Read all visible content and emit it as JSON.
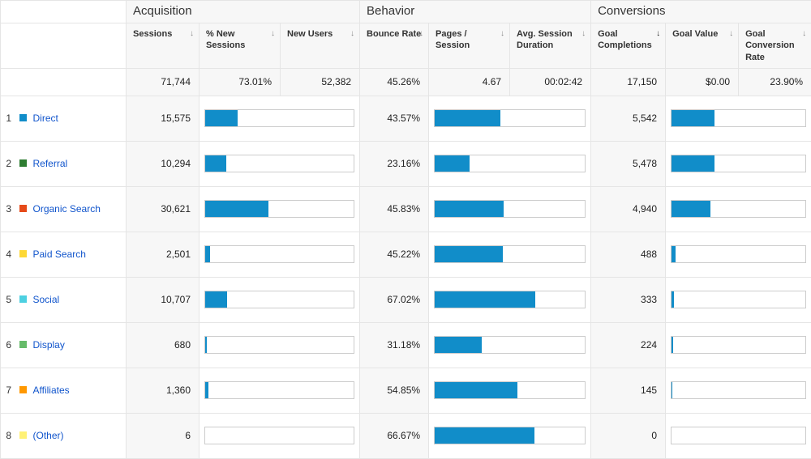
{
  "colors": {
    "bar_fill": "#118dc9",
    "bar_border": "#cccccc",
    "header_bg": "#f7f7f7",
    "link": "#1155cc"
  },
  "groups": {
    "acquisition": "Acquisition",
    "behavior": "Behavior",
    "conversions": "Conversions"
  },
  "columns": {
    "sessions": "Sessions",
    "pct_new_sessions": "% New Sessions",
    "new_users": "New Users",
    "bounce_rate": "Bounce Rate",
    "pages_per_session": "Pages / Session",
    "avg_session_duration": "Avg. Session Duration",
    "goal_completions": "Goal Completions",
    "goal_value": "Goal Value",
    "goal_conversion_rate": "Goal Conversion Rate"
  },
  "sort_indicator": "↓",
  "sorted_column": "goal_completions",
  "totals": {
    "sessions": "71,744",
    "pct_new_sessions": "73.01%",
    "new_users": "52,382",
    "bounce_rate": "45.26%",
    "pages_per_session": "4.67",
    "avg_session_duration": "00:02:42",
    "goal_completions": "17,150",
    "goal_value": "$0.00",
    "goal_conversion_rate": "23.90%"
  },
  "bar_scales": {
    "sessions_max": 71744,
    "bounce_pct_max": 100,
    "goal_completions_max": 17150
  },
  "rows": [
    {
      "n": "1",
      "swatch": "#118dc9",
      "name": "Direct",
      "sessions": "15,575",
      "sessions_n": 15575,
      "bounce": "43.57%",
      "bounce_n": 43.57,
      "gc": "5,542",
      "gc_n": 5542
    },
    {
      "n": "2",
      "swatch": "#2e7d32",
      "name": "Referral",
      "sessions": "10,294",
      "sessions_n": 10294,
      "bounce": "23.16%",
      "bounce_n": 23.16,
      "gc": "5,478",
      "gc_n": 5478
    },
    {
      "n": "3",
      "swatch": "#e64a19",
      "name": "Organic Search",
      "sessions": "30,621",
      "sessions_n": 30621,
      "bounce": "45.83%",
      "bounce_n": 45.83,
      "gc": "4,940",
      "gc_n": 4940
    },
    {
      "n": "4",
      "swatch": "#fdd835",
      "name": "Paid Search",
      "sessions": "2,501",
      "sessions_n": 2501,
      "bounce": "45.22%",
      "bounce_n": 45.22,
      "gc": "488",
      "gc_n": 488
    },
    {
      "n": "5",
      "swatch": "#4dd0e1",
      "name": "Social",
      "sessions": "10,707",
      "sessions_n": 10707,
      "bounce": "67.02%",
      "bounce_n": 67.02,
      "gc": "333",
      "gc_n": 333
    },
    {
      "n": "6",
      "swatch": "#66bb6a",
      "name": "Display",
      "sessions": "680",
      "sessions_n": 680,
      "bounce": "31.18%",
      "bounce_n": 31.18,
      "gc": "224",
      "gc_n": 224
    },
    {
      "n": "7",
      "swatch": "#ff9800",
      "name": "Affiliates",
      "sessions": "1,360",
      "sessions_n": 1360,
      "bounce": "54.85%",
      "bounce_n": 54.85,
      "gc": "145",
      "gc_n": 145
    },
    {
      "n": "8",
      "swatch": "#fff176",
      "name": "(Other)",
      "sessions": "6",
      "sessions_n": 6,
      "bounce": "66.67%",
      "bounce_n": 66.67,
      "gc": "0",
      "gc_n": 0
    }
  ]
}
